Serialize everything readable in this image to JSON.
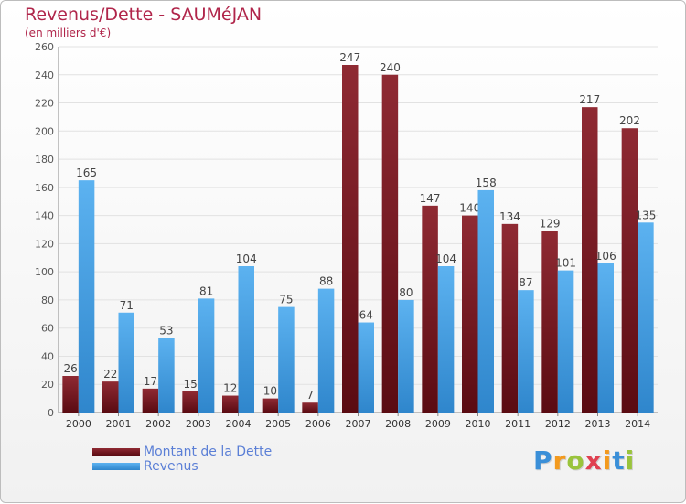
{
  "chart_data": {
    "type": "bar",
    "title": "Revenus/Dette - SAUMéJAN",
    "subtitle": "(en milliers d'€)",
    "categories": [
      "2000",
      "2001",
      "2002",
      "2003",
      "2004",
      "2005",
      "2006",
      "2007",
      "2008",
      "2009",
      "2010",
      "2011",
      "2012",
      "2013",
      "2014"
    ],
    "series": [
      {
        "name": "Montant de la Dette",
        "color": "#7a1a22",
        "values": [
          26,
          22,
          17,
          15,
          12,
          10,
          7,
          247,
          240,
          147,
          140,
          134,
          129,
          217,
          202
        ]
      },
      {
        "name": "Revenus",
        "color": "#4ea3e6",
        "values": [
          165,
          71,
          53,
          81,
          104,
          75,
          88,
          64,
          80,
          104,
          158,
          87,
          101,
          106,
          135
        ]
      }
    ],
    "ylim": [
      0,
      260
    ],
    "yticks": [
      0,
      20,
      40,
      60,
      80,
      100,
      120,
      140,
      160,
      180,
      200,
      220,
      240,
      260
    ],
    "grid": true,
    "legend_position": "bottom-left"
  },
  "logo": {
    "letters": [
      "P",
      "r",
      "o",
      "x",
      "i",
      "t",
      "i"
    ]
  }
}
